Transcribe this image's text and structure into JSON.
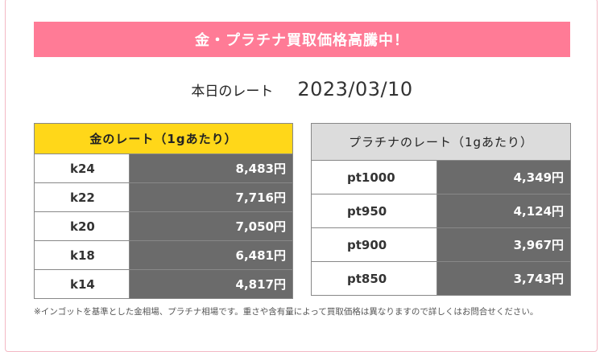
{
  "banner": {
    "title": "金・プラチナ買取価格高騰中！"
  },
  "rate_header": {
    "label": "本日のレート",
    "date": "2023/03/10"
  },
  "gold_table": {
    "title": "金のレート（1gあたり）",
    "rows": [
      {
        "name": "k24",
        "price": "8,483円"
      },
      {
        "name": "k22",
        "price": "7,716円"
      },
      {
        "name": "k20",
        "price": "7,050円"
      },
      {
        "name": "k18",
        "price": "6,481円"
      },
      {
        "name": "k14",
        "price": "4,817円"
      }
    ]
  },
  "platinum_table": {
    "title": "プラチナのレート（1gあたり）",
    "rows": [
      {
        "name": "pt1000",
        "price": "4,349円"
      },
      {
        "name": "pt950",
        "price": "4,124円"
      },
      {
        "name": "pt900",
        "price": "3,967円"
      },
      {
        "name": "pt850",
        "price": "3,743円"
      }
    ]
  },
  "footnote": "※インゴットを基準とした金相場、プラチナ相場です。重さや含有量によって買取価格は異なりますので詳しくはお問合せください。",
  "colors": {
    "banner_bg": "#ff7b96",
    "gold_header_bg": "#ffd719",
    "platinum_header_bg": "#dcdcdc",
    "price_cell_bg": "#6b6b6b"
  }
}
